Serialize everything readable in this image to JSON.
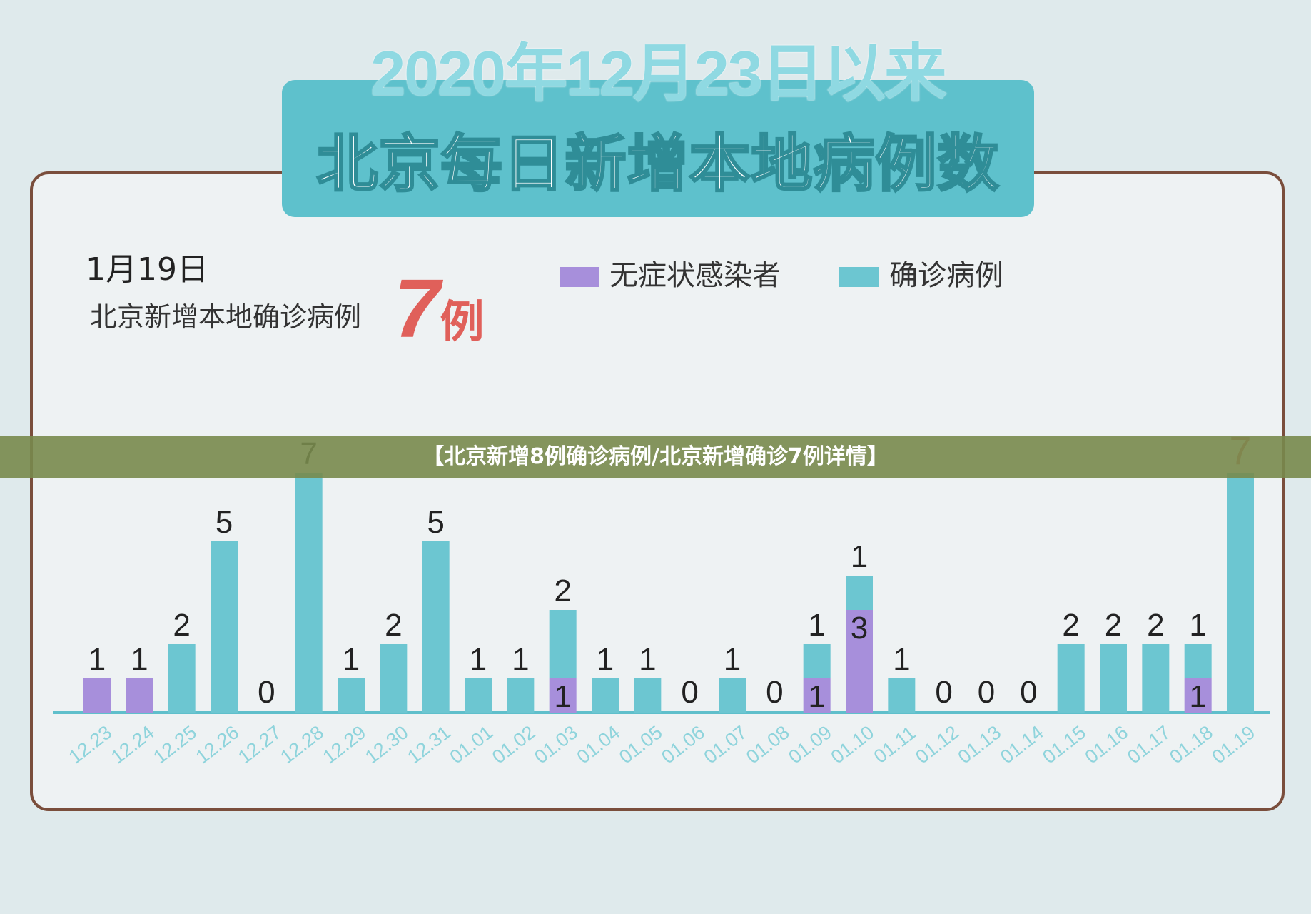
{
  "header": {
    "title_line1": "2020年12月23日以来",
    "title_line2": "北京每日新增本地病例数"
  },
  "summary": {
    "date": "1月19日",
    "label": "北京新增本地确诊病例",
    "highlight_number": "7",
    "highlight_unit": "例"
  },
  "legend": [
    {
      "label": "无症状感染者",
      "color": "#a78fdb"
    },
    {
      "label": "确诊病例",
      "color": "#6cc6d1"
    }
  ],
  "banner": {
    "text": "【北京新增8例确诊病例/北京新增确诊7例详情】"
  },
  "chart_data": {
    "type": "bar",
    "stacked": true,
    "categories": [
      "12.23",
      "12.24",
      "12.25",
      "12.26",
      "12.27",
      "12.28",
      "12.29",
      "12.30",
      "12.31",
      "01.01",
      "01.02",
      "01.03",
      "01.04",
      "01.05",
      "01.06",
      "01.07",
      "01.08",
      "01.09",
      "01.10",
      "01.11",
      "01.12",
      "01.13",
      "01.14",
      "01.15",
      "01.16",
      "01.17",
      "01.18",
      "01.19"
    ],
    "series": [
      {
        "name": "无症状感染者",
        "color": "#a78fdb",
        "values": [
          1,
          1,
          0,
          0,
          0,
          0,
          0,
          0,
          0,
          0,
          0,
          1,
          0,
          0,
          0,
          0,
          0,
          1,
          3,
          0,
          0,
          0,
          0,
          0,
          0,
          0,
          1,
          0
        ]
      },
      {
        "name": "确诊病例",
        "color": "#6cc6d1",
        "values": [
          0,
          0,
          2,
          5,
          0,
          7,
          1,
          2,
          5,
          1,
          1,
          2,
          1,
          1,
          0,
          1,
          0,
          1,
          1,
          1,
          0,
          0,
          0,
          2,
          2,
          2,
          1,
          7
        ]
      }
    ],
    "highlight_index": 27,
    "highlight_color": "#d86a5e",
    "ylim": [
      0,
      7
    ],
    "axis_color": "#5fbfcb",
    "tick_label_color": "#8fd4dc"
  }
}
